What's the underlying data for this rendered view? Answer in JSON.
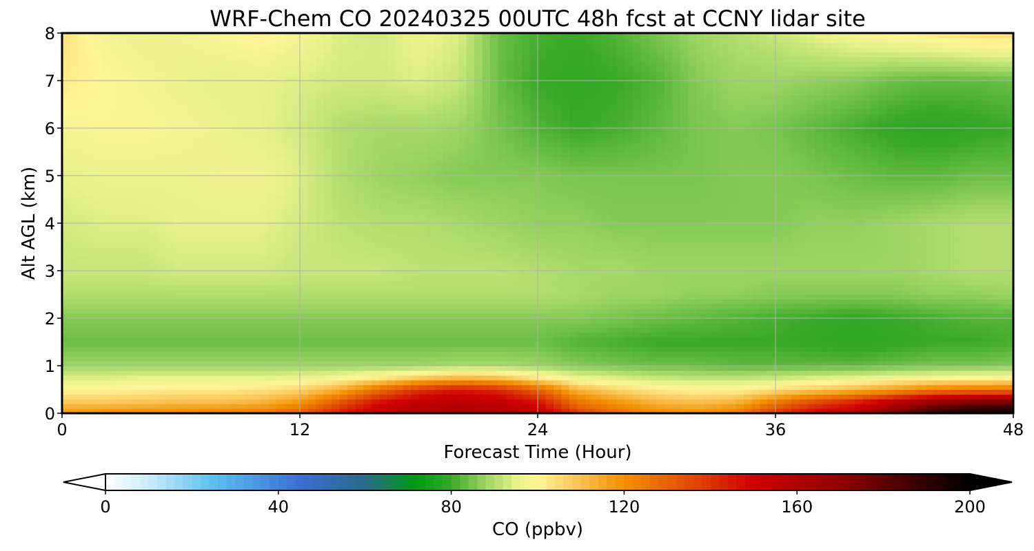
{
  "chart_data": {
    "type": "heatmap",
    "title": "WRF-Chem CO  20240325 00UTC 48h fcst at CCNY lidar site",
    "xlabel": "Forecast Time (Hour)",
    "ylabel": "Alt AGL (km)",
    "xlim": [
      0,
      48
    ],
    "ylim": [
      0,
      8
    ],
    "xticks": [
      0,
      12,
      24,
      36,
      48
    ],
    "yticks": [
      0,
      1,
      2,
      3,
      4,
      5,
      6,
      7,
      8
    ],
    "grid": true,
    "times": [
      0,
      2,
      4,
      6,
      8,
      10,
      12,
      14,
      16,
      18,
      20,
      22,
      24,
      26,
      28,
      30,
      32,
      34,
      36,
      38,
      40,
      42,
      44,
      46,
      48
    ],
    "altitudes": [
      0,
      0.1,
      0.25,
      0.5,
      0.75,
      1,
      1.5,
      2,
      2.5,
      3,
      4,
      5,
      6,
      7,
      8
    ],
    "values": [
      [
        118,
        120,
        122,
        122,
        124,
        126,
        132,
        145,
        155,
        160,
        162,
        160,
        158,
        140,
        128,
        122,
        120,
        124,
        140,
        150,
        158,
        175,
        190,
        198,
        200
      ],
      [
        115,
        116,
        117,
        118,
        119,
        120,
        126,
        140,
        152,
        158,
        160,
        158,
        152,
        132,
        124,
        118,
        116,
        120,
        134,
        145,
        152,
        168,
        182,
        190,
        192
      ],
      [
        108,
        108,
        109,
        110,
        110,
        112,
        118,
        132,
        146,
        154,
        156,
        154,
        146,
        126,
        118,
        112,
        110,
        112,
        124,
        134,
        142,
        155,
        166,
        172,
        174
      ],
      [
        100,
        100,
        101,
        102,
        102,
        103,
        106,
        114,
        128,
        140,
        146,
        142,
        130,
        112,
        106,
        102,
        100,
        100,
        104,
        108,
        112,
        118,
        124,
        126,
        126
      ],
      [
        94,
        94,
        95,
        95,
        95,
        95,
        96,
        98,
        102,
        108,
        112,
        110,
        102,
        96,
        94,
        92,
        91,
        91,
        92,
        94,
        95,
        97,
        98,
        99,
        99
      ],
      [
        88,
        88,
        88,
        88,
        88,
        88,
        88,
        88,
        88,
        88,
        89,
        89,
        88,
        86,
        85,
        84,
        84,
        83,
        83,
        83,
        83,
        84,
        85,
        85,
        86
      ],
      [
        84,
        84,
        84,
        84,
        84,
        84,
        84,
        84,
        84,
        84,
        84,
        84,
        84,
        82,
        81,
        80,
        80,
        80,
        80,
        79,
        78,
        79,
        80,
        80,
        81
      ],
      [
        86,
        86,
        86,
        86,
        86,
        86,
        86,
        86,
        86,
        86,
        86,
        86,
        86,
        86,
        85,
        84,
        83,
        82,
        81,
        80,
        79,
        80,
        81,
        82,
        82
      ],
      [
        90,
        90,
        90,
        90,
        90,
        90,
        90,
        90,
        90,
        90,
        90,
        90,
        90,
        89,
        88,
        88,
        87,
        87,
        86,
        86,
        86,
        86,
        87,
        87,
        88
      ],
      [
        92,
        92,
        92,
        93,
        93,
        93,
        92,
        92,
        92,
        91,
        91,
        91,
        90,
        89,
        89,
        88,
        88,
        88,
        88,
        88,
        88,
        88,
        89,
        90,
        90
      ],
      [
        93,
        94,
        94,
        95,
        95,
        95,
        93,
        91,
        90,
        90,
        89,
        88,
        87,
        87,
        86,
        86,
        86,
        86,
        86,
        87,
        87,
        88,
        89,
        90,
        90
      ],
      [
        95,
        96,
        96,
        96,
        97,
        97,
        94,
        90,
        88,
        87,
        86,
        86,
        86,
        85,
        85,
        85,
        85,
        86,
        86,
        85,
        84,
        83,
        83,
        84,
        84
      ],
      [
        98,
        99,
        99,
        98,
        96,
        95,
        93,
        90,
        89,
        89,
        88,
        85,
        82,
        80,
        81,
        83,
        85,
        86,
        85,
        83,
        81,
        79,
        78,
        79,
        80
      ],
      [
        102,
        100,
        98,
        96,
        95,
        95,
        94,
        93,
        93,
        94,
        92,
        84,
        80,
        79,
        80,
        82,
        86,
        88,
        88,
        87,
        86,
        84,
        83,
        83,
        84
      ],
      [
        104,
        98,
        96,
        97,
        99,
        101,
        98,
        94,
        93,
        96,
        94,
        84,
        81,
        80,
        82,
        85,
        88,
        90,
        92,
        95,
        98,
        100,
        102,
        104,
        105
      ]
    ],
    "colorbar": {
      "label": "CO  (ppbv)",
      "ticks": [
        0,
        40,
        80,
        120,
        160,
        200
      ],
      "min": 0,
      "max": 200,
      "stops": [
        {
          "v": 0,
          "color": "#ffffff"
        },
        {
          "v": 10,
          "color": "#c9ecfa"
        },
        {
          "v": 25,
          "color": "#5cbff0"
        },
        {
          "v": 45,
          "color": "#3a6fd0"
        },
        {
          "v": 60,
          "color": "#2a6a8a"
        },
        {
          "v": 72,
          "color": "#009a10"
        },
        {
          "v": 80,
          "color": "#3aa82a"
        },
        {
          "v": 88,
          "color": "#9ed565"
        },
        {
          "v": 95,
          "color": "#e6f28a"
        },
        {
          "v": 100,
          "color": "#fff598"
        },
        {
          "v": 110,
          "color": "#fbc050"
        },
        {
          "v": 120,
          "color": "#f39000"
        },
        {
          "v": 135,
          "color": "#e24c00"
        },
        {
          "v": 150,
          "color": "#d00000"
        },
        {
          "v": 170,
          "color": "#900000"
        },
        {
          "v": 190,
          "color": "#300000"
        },
        {
          "v": 200,
          "color": "#000000"
        }
      ]
    }
  }
}
